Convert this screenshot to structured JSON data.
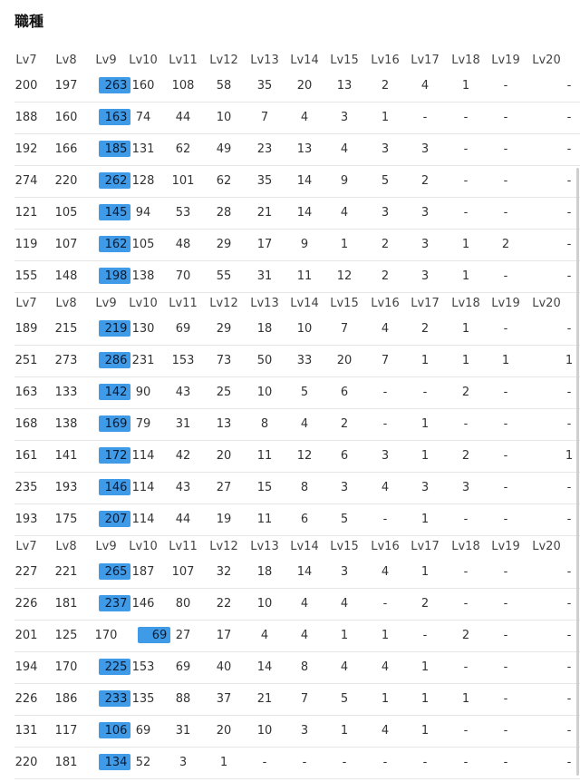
{
  "title": "職種",
  "header": [
    "Lv7",
    "Lv8",
    "Lv9",
    "Lv10",
    "Lv11",
    "Lv12",
    "Lv13",
    "Lv14",
    "Lv15",
    "Lv16",
    "Lv17",
    "Lv18",
    "Lv19",
    "Lv20"
  ],
  "groups": [
    {
      "rows": [
        {
          "cells": [
            "200",
            "197",
            "263",
            "160",
            "108",
            "58",
            "35",
            "20",
            "13",
            "2",
            "4",
            "1",
            "-",
            "-"
          ],
          "hl": 2
        },
        {
          "cells": [
            "188",
            "160",
            "163",
            "74",
            "44",
            "10",
            "7",
            "4",
            "3",
            "1",
            "-",
            "-",
            "-",
            "-"
          ],
          "hl": 2
        },
        {
          "cells": [
            "192",
            "166",
            "185",
            "131",
            "62",
            "49",
            "23",
            "13",
            "4",
            "3",
            "3",
            "-",
            "-",
            "-"
          ],
          "hl": 2
        },
        {
          "cells": [
            "274",
            "220",
            "262",
            "128",
            "101",
            "62",
            "35",
            "14",
            "9",
            "5",
            "2",
            "-",
            "-",
            "-"
          ],
          "hl": 2
        },
        {
          "cells": [
            "121",
            "105",
            "145",
            "94",
            "53",
            "28",
            "21",
            "14",
            "4",
            "3",
            "3",
            "-",
            "-",
            "-"
          ],
          "hl": 2
        },
        {
          "cells": [
            "119",
            "107",
            "162",
            "105",
            "48",
            "29",
            "17",
            "9",
            "1",
            "2",
            "3",
            "1",
            "2",
            "-"
          ],
          "hl": 2
        },
        {
          "cells": [
            "155",
            "148",
            "198",
            "138",
            "70",
            "55",
            "31",
            "11",
            "12",
            "2",
            "3",
            "1",
            "-",
            "-"
          ],
          "hl": 2
        }
      ]
    },
    {
      "rows": [
        {
          "cells": [
            "189",
            "215",
            "219",
            "130",
            "69",
            "29",
            "18",
            "10",
            "7",
            "4",
            "2",
            "1",
            "-",
            "-"
          ],
          "hl": 2
        },
        {
          "cells": [
            "251",
            "273",
            "286",
            "231",
            "153",
            "73",
            "50",
            "33",
            "20",
            "7",
            "1",
            "1",
            "1",
            "1"
          ],
          "hl": 2
        },
        {
          "cells": [
            "163",
            "133",
            "142",
            "90",
            "43",
            "25",
            "10",
            "5",
            "6",
            "-",
            "-",
            "2",
            "-",
            "-"
          ],
          "hl": 2
        },
        {
          "cells": [
            "168",
            "138",
            "169",
            "79",
            "31",
            "13",
            "8",
            "4",
            "2",
            "-",
            "1",
            "-",
            "-",
            "-"
          ],
          "hl": 2
        },
        {
          "cells": [
            "161",
            "141",
            "172",
            "114",
            "42",
            "20",
            "11",
            "12",
            "6",
            "3",
            "1",
            "2",
            "-",
            "1"
          ],
          "hl": 2
        },
        {
          "cells": [
            "235",
            "193",
            "146",
            "114",
            "43",
            "27",
            "15",
            "8",
            "3",
            "4",
            "3",
            "3",
            "-",
            "-"
          ],
          "hl": 2
        },
        {
          "cells": [
            "193",
            "175",
            "207",
            "114",
            "44",
            "19",
            "11",
            "6",
            "5",
            "-",
            "1",
            "-",
            "-",
            "-"
          ],
          "hl": 2
        }
      ]
    },
    {
      "rows": [
        {
          "cells": [
            "227",
            "221",
            "265",
            "187",
            "107",
            "32",
            "18",
            "14",
            "3",
            "4",
            "1",
            "-",
            "-",
            "-"
          ],
          "hl": 2
        },
        {
          "cells": [
            "226",
            "181",
            "237",
            "146",
            "80",
            "22",
            "10",
            "4",
            "4",
            "-",
            "2",
            "-",
            "-",
            "-"
          ],
          "hl": 2
        },
        {
          "cells": [
            "201",
            "125",
            "170",
            "69",
            "27",
            "17",
            "4",
            "4",
            "1",
            "1",
            "-",
            "2",
            "-",
            "-"
          ],
          "hl": 3
        },
        {
          "cells": [
            "194",
            "170",
            "225",
            "153",
            "69",
            "40",
            "14",
            "8",
            "4",
            "4",
            "1",
            "-",
            "-",
            "-"
          ],
          "hl": 2
        },
        {
          "cells": [
            "226",
            "186",
            "233",
            "135",
            "88",
            "37",
            "21",
            "7",
            "5",
            "1",
            "1",
            "1",
            "-",
            "-"
          ],
          "hl": 2
        },
        {
          "cells": [
            "131",
            "117",
            "106",
            "69",
            "31",
            "20",
            "10",
            "3",
            "1",
            "4",
            "1",
            "-",
            "-",
            "-"
          ],
          "hl": 2
        },
        {
          "cells": [
            "220",
            "181",
            "134",
            "52",
            "3",
            "1",
            "-",
            "-",
            "-",
            "-",
            "-",
            "-",
            "-",
            "-"
          ],
          "hl": 2
        }
      ]
    }
  ]
}
